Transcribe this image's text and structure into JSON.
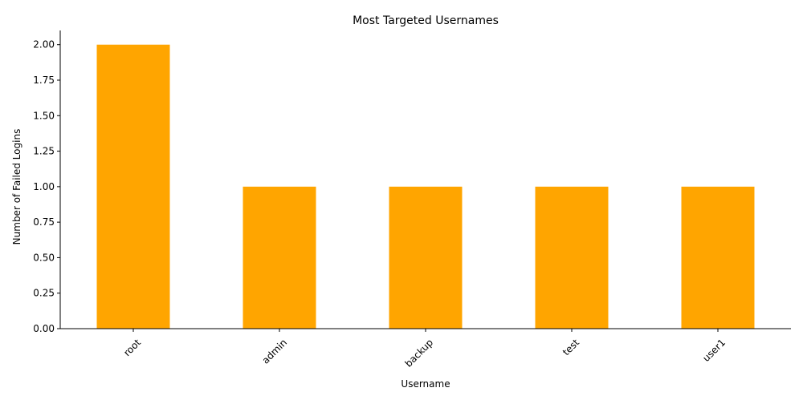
{
  "chart_data": {
    "type": "bar",
    "title": "Most Targeted Usernames",
    "xlabel": "Username",
    "ylabel": "Number of Failed Logins",
    "categories": [
      "root",
      "admin",
      "backup",
      "test",
      "user1"
    ],
    "values": [
      2,
      1,
      1,
      1,
      1
    ],
    "ylim": [
      0,
      2.1
    ],
    "yticks": [
      "0.00",
      "0.25",
      "0.50",
      "0.75",
      "1.00",
      "1.25",
      "1.50",
      "1.75",
      "2.00"
    ],
    "bar_color": "#FFA500",
    "grid": false,
    "legend": "none",
    "xtick_rotation_deg": 45
  }
}
